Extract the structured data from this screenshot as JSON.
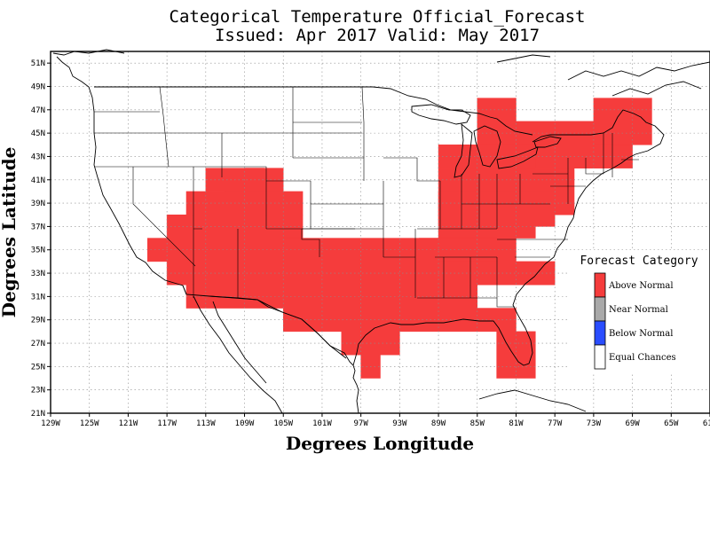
{
  "title_line1": "Categorical Temperature Official_Forecast",
  "title_line2": "Issued: Apr 2017 Valid: May 2017",
  "x_axis_title": "Degrees Longitude",
  "y_axis_title": "Degrees Latitude",
  "legend": {
    "title": "Forecast Category",
    "items": [
      {
        "label": "Above Normal",
        "color": "#f53c3c"
      },
      {
        "label": "Near Normal",
        "color": "#a9a9a9"
      },
      {
        "label": "Below Normal",
        "color": "#2a4dff"
      },
      {
        "label": "Equal Chances",
        "color": "#ffffff"
      }
    ]
  },
  "colors": {
    "above_normal": "#f53c3c",
    "grid": "#8c8c8c",
    "outline": "#000000"
  },
  "x_ticks": [
    "129W",
    "125W",
    "121W",
    "117W",
    "113W",
    "109W",
    "105W",
    "101W",
    "97W",
    "93W",
    "89W",
    "85W",
    "81W",
    "77W",
    "73W",
    "69W",
    "65W",
    "61W"
  ],
  "y_ticks": [
    "21N",
    "23N",
    "25N",
    "27N",
    "29N",
    "31N",
    "33N",
    "35N",
    "37N",
    "39N",
    "41N",
    "43N",
    "45N",
    "47N",
    "49N",
    "51N"
  ],
  "map_data": {
    "extent": {
      "lon": [
        -129,
        -61
      ],
      "lat": [
        21,
        52
      ]
    },
    "above_normal_cells": [
      [
        -113,
        -107,
        40,
        42
      ],
      [
        -109,
        -105,
        40,
        42
      ],
      [
        -115,
        -105,
        38,
        40
      ],
      [
        -111,
        -103,
        38,
        40
      ],
      [
        -117,
        -103,
        36,
        38
      ],
      [
        -119,
        -103,
        34,
        36
      ],
      [
        -117,
        -101,
        32,
        34
      ],
      [
        -115,
        -99,
        30,
        32
      ],
      [
        -103,
        -85,
        30,
        32
      ],
      [
        -105,
        -83,
        34,
        36
      ],
      [
        -101,
        -83,
        32,
        34
      ],
      [
        -89,
        -79,
        36,
        38
      ],
      [
        -91,
        -81,
        34,
        36
      ],
      [
        -89,
        -77,
        32,
        34
      ],
      [
        -105,
        -81,
        28,
        30
      ],
      [
        -99,
        -93,
        26,
        28
      ],
      [
        -97,
        -95,
        24,
        26
      ],
      [
        -83,
        -79,
        24,
        28
      ],
      [
        -89,
        -75,
        38,
        42
      ],
      [
        -89,
        -77,
        37,
        40
      ],
      [
        -87,
        -71,
        42,
        44
      ],
      [
        -85,
        -71,
        44,
        46
      ],
      [
        -83,
        -71,
        44,
        46
      ],
      [
        -85,
        -81,
        46,
        48
      ],
      [
        -77,
        -69,
        42,
        46
      ],
      [
        -71,
        -67,
        44,
        48
      ],
      [
        -73,
        -69,
        44,
        48
      ],
      [
        -89,
        -79,
        42,
        44
      ]
    ]
  }
}
